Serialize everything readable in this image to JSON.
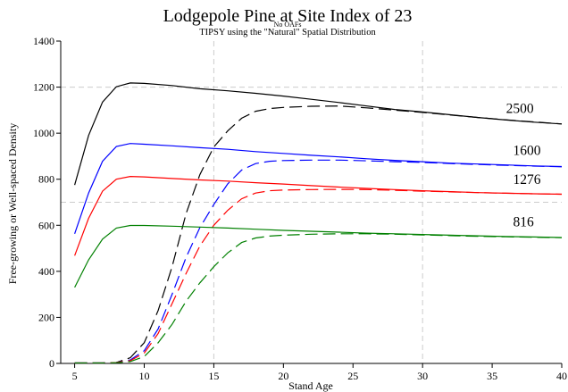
{
  "chart_data": {
    "type": "line",
    "title": "Lodgepole Pine at Site Index of 23",
    "subtitle_1": "No OAFs",
    "subtitle_2": "TIPSY using the \"Natural\" Spatial Distribution",
    "xlabel": "Stand Age",
    "ylabel": "Free-growing or Well-spaced Density",
    "xlim": [
      4,
      40
    ],
    "ylim": [
      0,
      1400
    ],
    "xticks": [
      5,
      10,
      15,
      20,
      25,
      30,
      35,
      40
    ],
    "yticks": [
      0,
      200,
      400,
      600,
      800,
      1000,
      1200,
      1400
    ],
    "reference_lines": {
      "x": [
        15,
        30
      ],
      "y": [
        700,
        1200
      ]
    },
    "grid": false,
    "legend": "none",
    "series": [
      {
        "name": "2500",
        "color": "#000000",
        "density": [
          [
            5,
            775
          ],
          [
            6,
            990
          ],
          [
            7,
            1135
          ],
          [
            8,
            1202
          ],
          [
            9,
            1218
          ],
          [
            10,
            1216
          ],
          [
            12,
            1207
          ],
          [
            14,
            1193
          ],
          [
            16,
            1184
          ],
          [
            18,
            1173
          ],
          [
            20,
            1161
          ],
          [
            22,
            1147
          ],
          [
            24,
            1133
          ],
          [
            26,
            1118
          ],
          [
            28,
            1103
          ],
          [
            30,
            1092
          ],
          [
            32,
            1080
          ],
          [
            34,
            1068
          ],
          [
            36,
            1057
          ],
          [
            38,
            1048
          ],
          [
            40,
            1040
          ]
        ],
        "free_growing": [
          [
            5,
            2
          ],
          [
            6,
            2
          ],
          [
            7,
            2
          ],
          [
            8,
            4
          ],
          [
            9,
            25
          ],
          [
            10,
            90
          ],
          [
            11,
            230
          ],
          [
            12,
            420
          ],
          [
            13,
            650
          ],
          [
            14,
            820
          ],
          [
            15,
            940
          ],
          [
            16,
            1010
          ],
          [
            17,
            1065
          ],
          [
            18,
            1095
          ],
          [
            19,
            1107
          ],
          [
            20,
            1112
          ],
          [
            22,
            1117
          ],
          [
            24,
            1118
          ],
          [
            26,
            1110
          ],
          [
            28,
            1100
          ],
          [
            30,
            1090
          ],
          [
            32,
            1079
          ],
          [
            34,
            1068
          ],
          [
            36,
            1058
          ],
          [
            38,
            1049
          ],
          [
            40,
            1040
          ]
        ]
      },
      {
        "name": "1600",
        "color": "#0000ff",
        "density": [
          [
            5,
            563
          ],
          [
            6,
            740
          ],
          [
            7,
            878
          ],
          [
            8,
            942
          ],
          [
            9,
            955
          ],
          [
            10,
            952
          ],
          [
            12,
            945
          ],
          [
            14,
            937
          ],
          [
            16,
            930
          ],
          [
            18,
            920
          ],
          [
            20,
            912
          ],
          [
            22,
            904
          ],
          [
            24,
            897
          ],
          [
            26,
            889
          ],
          [
            28,
            882
          ],
          [
            30,
            876
          ],
          [
            32,
            870
          ],
          [
            34,
            866
          ],
          [
            36,
            862
          ],
          [
            38,
            858
          ],
          [
            40,
            855
          ]
        ],
        "free_growing": [
          [
            5,
            2
          ],
          [
            6,
            2
          ],
          [
            7,
            2
          ],
          [
            8,
            4
          ],
          [
            9,
            15
          ],
          [
            10,
            55
          ],
          [
            11,
            150
          ],
          [
            12,
            300
          ],
          [
            13,
            460
          ],
          [
            14,
            590
          ],
          [
            15,
            690
          ],
          [
            16,
            780
          ],
          [
            17,
            840
          ],
          [
            18,
            868
          ],
          [
            19,
            878
          ],
          [
            20,
            881
          ],
          [
            22,
            883
          ],
          [
            24,
            883
          ],
          [
            26,
            880
          ],
          [
            28,
            876
          ],
          [
            30,
            873
          ],
          [
            32,
            868
          ],
          [
            34,
            864
          ],
          [
            36,
            860
          ],
          [
            38,
            857
          ],
          [
            40,
            854
          ]
        ]
      },
      {
        "name": "1276",
        "color": "#ff0000",
        "density": [
          [
            5,
            468
          ],
          [
            6,
            630
          ],
          [
            7,
            748
          ],
          [
            8,
            800
          ],
          [
            9,
            812
          ],
          [
            10,
            810
          ],
          [
            12,
            803
          ],
          [
            14,
            797
          ],
          [
            16,
            792
          ],
          [
            18,
            785
          ],
          [
            20,
            779
          ],
          [
            22,
            772
          ],
          [
            24,
            766
          ],
          [
            26,
            760
          ],
          [
            28,
            755
          ],
          [
            30,
            750
          ],
          [
            32,
            746
          ],
          [
            34,
            742
          ],
          [
            36,
            739
          ],
          [
            38,
            737
          ],
          [
            40,
            735
          ]
        ],
        "free_growing": [
          [
            5,
            2
          ],
          [
            6,
            2
          ],
          [
            7,
            2
          ],
          [
            8,
            4
          ],
          [
            9,
            12
          ],
          [
            10,
            45
          ],
          [
            11,
            130
          ],
          [
            12,
            260
          ],
          [
            13,
            390
          ],
          [
            14,
            510
          ],
          [
            15,
            600
          ],
          [
            16,
            665
          ],
          [
            17,
            715
          ],
          [
            18,
            740
          ],
          [
            19,
            750
          ],
          [
            20,
            753
          ],
          [
            22,
            755
          ],
          [
            24,
            756
          ],
          [
            26,
            755
          ],
          [
            28,
            752
          ],
          [
            30,
            748
          ],
          [
            32,
            745
          ],
          [
            34,
            742
          ],
          [
            36,
            739
          ],
          [
            38,
            737
          ],
          [
            40,
            735
          ]
        ]
      },
      {
        "name": "816",
        "color": "#008000",
        "density": [
          [
            5,
            330
          ],
          [
            6,
            450
          ],
          [
            7,
            540
          ],
          [
            8,
            588
          ],
          [
            9,
            599
          ],
          [
            10,
            599
          ],
          [
            12,
            596
          ],
          [
            14,
            592
          ],
          [
            16,
            588
          ],
          [
            18,
            583
          ],
          [
            20,
            578
          ],
          [
            22,
            574
          ],
          [
            24,
            570
          ],
          [
            26,
            566
          ],
          [
            28,
            563
          ],
          [
            30,
            560
          ],
          [
            32,
            557
          ],
          [
            34,
            554
          ],
          [
            36,
            551
          ],
          [
            38,
            549
          ],
          [
            40,
            547
          ]
        ],
        "free_growing": [
          [
            5,
            2
          ],
          [
            6,
            2
          ],
          [
            7,
            2
          ],
          [
            8,
            3
          ],
          [
            9,
            8
          ],
          [
            10,
            30
          ],
          [
            11,
            90
          ],
          [
            12,
            170
          ],
          [
            13,
            270
          ],
          [
            14,
            350
          ],
          [
            15,
            420
          ],
          [
            16,
            480
          ],
          [
            17,
            525
          ],
          [
            18,
            545
          ],
          [
            19,
            553
          ],
          [
            20,
            557
          ],
          [
            22,
            561
          ],
          [
            24,
            563
          ],
          [
            26,
            563
          ],
          [
            28,
            561
          ],
          [
            30,
            558
          ],
          [
            32,
            555
          ],
          [
            34,
            552
          ],
          [
            36,
            550
          ],
          [
            38,
            548
          ],
          [
            40,
            546
          ]
        ]
      }
    ],
    "series_labels": [
      {
        "text": "2500",
        "x": 36,
        "y": 1088
      },
      {
        "text": "1600",
        "x": 36.5,
        "y": 905
      },
      {
        "text": "1276",
        "x": 36.5,
        "y": 780
      },
      {
        "text": "816",
        "x": 36.5,
        "y": 595
      }
    ],
    "colors": {
      "axis": "#000000",
      "reference_line": "#cccccc"
    }
  }
}
